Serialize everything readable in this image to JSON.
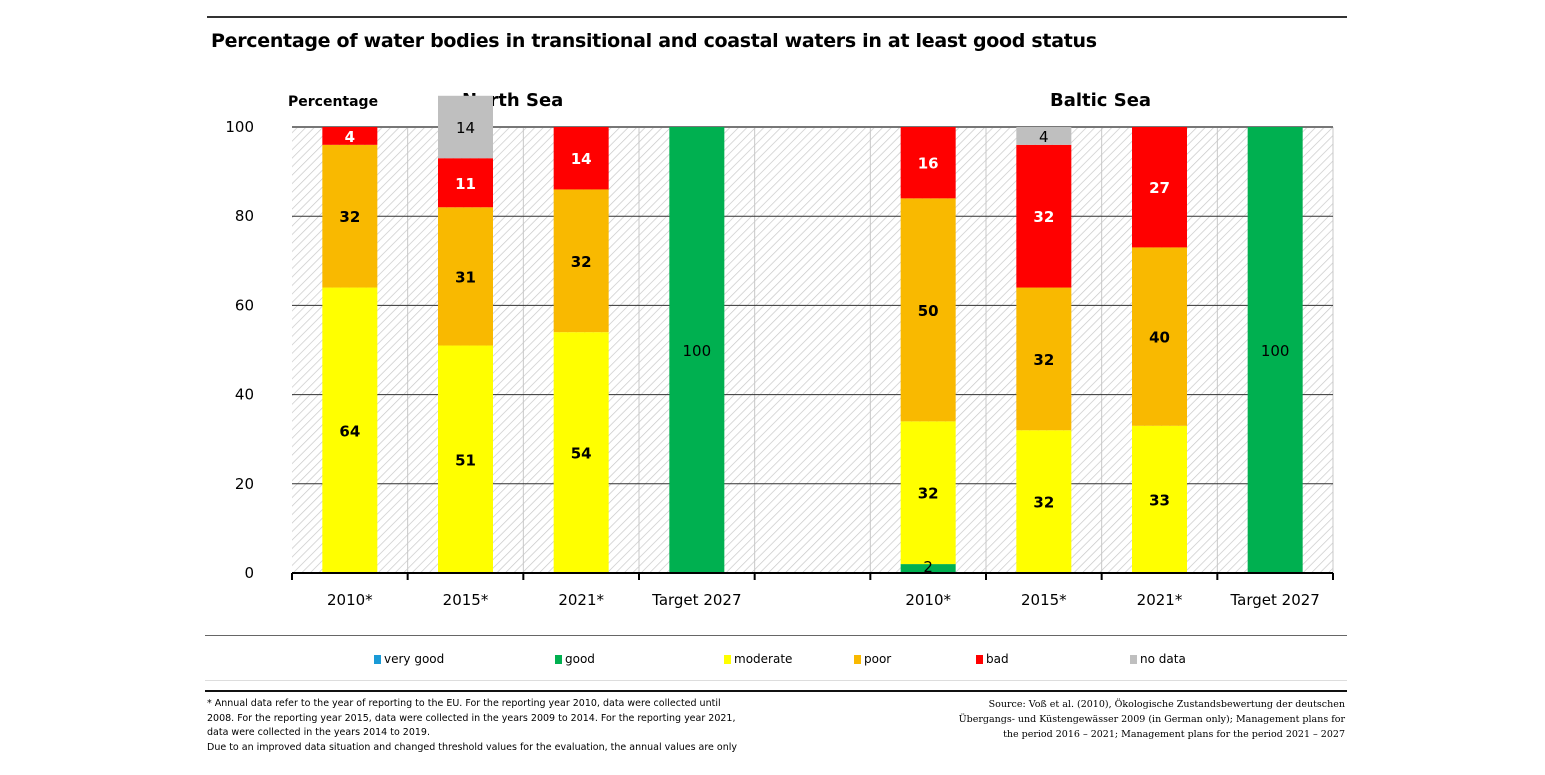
{
  "header": {
    "title": "Percentage of water bodies in transitional and coastal waters in at least good status"
  },
  "chart_data": {
    "type": "bar",
    "stacked": true,
    "title": "Percentage of water bodies in transitional and coastal waters in at least good status",
    "ylabel": "Percentage",
    "xlabel": "",
    "ylim": [
      0,
      100
    ],
    "yticks": [
      0,
      20,
      40,
      60,
      80,
      100
    ],
    "grid": true,
    "legend_position": "bottom",
    "groups": [
      {
        "name": "North Sea",
        "categories": [
          "2010*",
          "2015*",
          "2021*",
          "Target 2027"
        ],
        "series": [
          {
            "name": "very good",
            "values": [
              0,
              0,
              0,
              0
            ]
          },
          {
            "name": "good",
            "values": [
              0,
              0,
              0,
              100
            ]
          },
          {
            "name": "moderate",
            "values": [
              64,
              51,
              54,
              0
            ]
          },
          {
            "name": "poor",
            "values": [
              32,
              31,
              32,
              0
            ]
          },
          {
            "name": "bad",
            "values": [
              4,
              11,
              14,
              0
            ]
          },
          {
            "name": "no data",
            "values": [
              0,
              14,
              0,
              0
            ]
          }
        ]
      },
      {
        "name": "Baltic Sea",
        "categories": [
          "2010*",
          "2015*",
          "2021*",
          "Target 2027"
        ],
        "series": [
          {
            "name": "very good",
            "values": [
              0,
              0,
              0,
              0
            ]
          },
          {
            "name": "good",
            "values": [
              2,
              0,
              0,
              100
            ]
          },
          {
            "name": "moderate",
            "values": [
              32,
              32,
              33,
              0
            ]
          },
          {
            "name": "poor",
            "values": [
              50,
              32,
              40,
              0
            ]
          },
          {
            "name": "bad",
            "values": [
              16,
              32,
              27,
              0
            ]
          },
          {
            "name": "no data",
            "values": [
              0,
              4,
              0,
              0
            ]
          }
        ]
      }
    ],
    "legend": [
      {
        "name": "very good",
        "color": "#1a9ad6"
      },
      {
        "name": "good",
        "color": "#00b050"
      },
      {
        "name": "moderate",
        "color": "#ffff00"
      },
      {
        "name": "poor",
        "color": "#f9b900"
      },
      {
        "name": "bad",
        "color": "#ff0000"
      },
      {
        "name": "no data",
        "color": "#bfbfbf"
      }
    ],
    "label_colors": {
      "very good": "#000000",
      "good": "#000000",
      "moderate": "#000000",
      "poor": "#000000",
      "bad": "#ffffff",
      "no data": "#000000"
    }
  },
  "footnote": [
    "* Annual data refer to the year of reporting to the EU. For the reporting year 2010, data were collected until",
    "2008. For the reporting year 2015, data were collected in the years 2009 to 2014. For the reporting year 2021,",
    "data were collected in the years 2014 to 2019.",
    "Due to an improved data situation and changed threshold values for the evaluation, the annual values are only"
  ],
  "source": [
    "Source: Voß et al. (2010), Ökologische Zustandsbewertung der deutschen",
    "Übergangs- und Küstengewässer 2009 (in German only); Management plans for",
    "the period 2016 – 2021; Management plans for the period 2021 – 2027"
  ]
}
